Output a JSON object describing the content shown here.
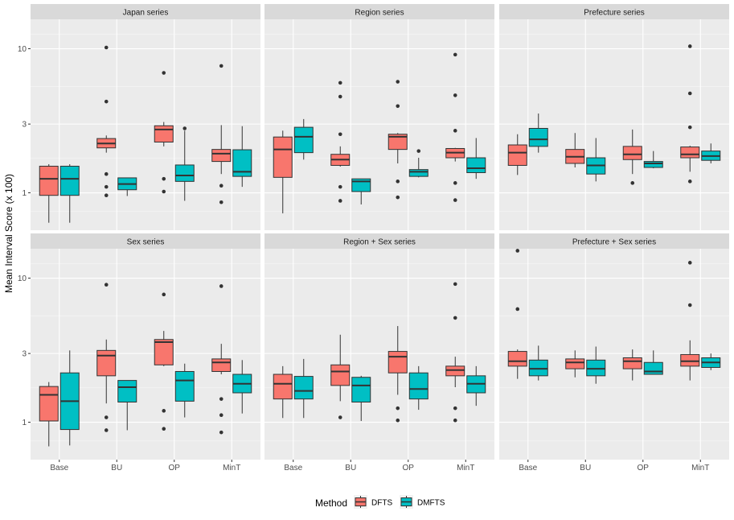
{
  "chart_data": {
    "type": "boxplot",
    "ylabel": "Mean Interval Score (x 100)",
    "y_scale": "log10",
    "ylim": [
      0.55,
      16
    ],
    "y_ticks": [
      1,
      3,
      10
    ],
    "categories": [
      "Base",
      "BU",
      "OP",
      "MinT"
    ],
    "legend": {
      "title": "Method",
      "position": "bottom",
      "entries": [
        {
          "name": "DFTS",
          "color": "#F8766D"
        },
        {
          "name": "DMFTS",
          "color": "#00BFC4"
        }
      ]
    },
    "panels": [
      {
        "title": "Japan series",
        "boxes": [
          {
            "category": "Base",
            "method": "DFTS",
            "stats": [
              0.62,
              0.96,
              1.25,
              1.53,
              1.58
            ],
            "outliers": []
          },
          {
            "category": "Base",
            "method": "DMFTS",
            "stats": [
              0.62,
              0.96,
              1.25,
              1.53,
              1.58
            ],
            "outliers": []
          },
          {
            "category": "BU",
            "method": "DFTS",
            "stats": [
              1.9,
              2.05,
              2.2,
              2.38,
              2.5
            ],
            "outliers": [
              10.2,
              4.3,
              1.35,
              1.1,
              0.96
            ]
          },
          {
            "category": "BU",
            "method": "DMFTS",
            "stats": [
              0.95,
              1.05,
              1.15,
              1.27,
              1.27
            ],
            "outliers": []
          },
          {
            "category": "OP",
            "method": "DFTS",
            "stats": [
              2.1,
              2.25,
              2.75,
              2.92,
              3.1
            ],
            "outliers": [
              6.8,
              1.25,
              1.02
            ]
          },
          {
            "category": "OP",
            "method": "DMFTS",
            "stats": [
              0.88,
              1.2,
              1.32,
              1.56,
              2.7
            ],
            "outliers": [
              2.8
            ]
          },
          {
            "category": "MinT",
            "method": "DFTS",
            "stats": [
              1.35,
              1.65,
              1.87,
              2.0,
              2.95
            ],
            "outliers": [
              7.6,
              1.12,
              0.86
            ]
          },
          {
            "category": "MinT",
            "method": "DMFTS",
            "stats": [
              1.1,
              1.3,
              1.4,
              1.99,
              2.9
            ],
            "outliers": []
          }
        ]
      },
      {
        "title": "Region series",
        "boxes": [
          {
            "category": "Base",
            "method": "DFTS",
            "stats": [
              0.72,
              1.28,
              2.0,
              2.44,
              2.7
            ],
            "outliers": []
          },
          {
            "category": "Base",
            "method": "DMFTS",
            "stats": [
              1.7,
              1.9,
              2.45,
              2.85,
              3.25
            ],
            "outliers": []
          },
          {
            "category": "BU",
            "method": "DFTS",
            "stats": [
              1.52,
              1.55,
              1.7,
              1.85,
              2.1
            ],
            "outliers": [
              5.8,
              4.65,
              2.55,
              1.1,
              0.88
            ]
          },
          {
            "category": "BU",
            "method": "DMFTS",
            "stats": [
              0.83,
              1.02,
              1.2,
              1.25,
              1.25
            ],
            "outliers": []
          },
          {
            "category": "OP",
            "method": "DFTS",
            "stats": [
              1.6,
              2.0,
              2.45,
              2.55,
              2.6
            ],
            "outliers": [
              5.9,
              4.0,
              1.2,
              0.93
            ]
          },
          {
            "category": "OP",
            "method": "DMFTS",
            "stats": [
              1.28,
              1.3,
              1.4,
              1.45,
              1.75
            ],
            "outliers": [
              1.95
            ]
          },
          {
            "category": "MinT",
            "method": "DFTS",
            "stats": [
              1.65,
              1.75,
              1.9,
              2.03,
              2.05
            ],
            "outliers": [
              9.1,
              4.75,
              2.7,
              1.17,
              0.89
            ]
          },
          {
            "category": "MinT",
            "method": "DMFTS",
            "stats": [
              1.25,
              1.38,
              1.48,
              1.75,
              2.4
            ],
            "outliers": []
          }
        ]
      },
      {
        "title": "Prefecture series",
        "boxes": [
          {
            "category": "Base",
            "method": "DFTS",
            "stats": [
              1.33,
              1.55,
              1.9,
              2.15,
              2.55
            ],
            "outliers": []
          },
          {
            "category": "Base",
            "method": "DMFTS",
            "stats": [
              1.9,
              2.1,
              2.35,
              2.8,
              3.55
            ],
            "outliers": []
          },
          {
            "category": "BU",
            "method": "DFTS",
            "stats": [
              1.5,
              1.6,
              1.78,
              2.0,
              2.6
            ],
            "outliers": []
          },
          {
            "category": "BU",
            "method": "DMFTS",
            "stats": [
              1.2,
              1.35,
              1.55,
              1.75,
              2.4
            ],
            "outliers": []
          },
          {
            "category": "OP",
            "method": "DFTS",
            "stats": [
              1.35,
              1.7,
              1.85,
              2.1,
              2.75
            ],
            "outliers": [
              1.17
            ]
          },
          {
            "category": "OP",
            "method": "DMFTS",
            "stats": [
              1.48,
              1.5,
              1.6,
              1.65,
              1.95
            ],
            "outliers": []
          },
          {
            "category": "MinT",
            "method": "DFTS",
            "stats": [
              1.4,
              1.75,
              1.85,
              2.08,
              2.12
            ],
            "outliers": [
              10.4,
              4.9,
              2.85,
              1.2
            ]
          },
          {
            "category": "MinT",
            "method": "DMFTS",
            "stats": [
              1.6,
              1.68,
              1.8,
              1.95,
              2.2
            ],
            "outliers": []
          }
        ]
      },
      {
        "title": "Sex series",
        "boxes": [
          {
            "category": "Base",
            "method": "DFTS",
            "stats": [
              0.68,
              1.02,
              1.55,
              1.77,
              1.9
            ],
            "outliers": []
          },
          {
            "category": "Base",
            "method": "DMFTS",
            "stats": [
              0.69,
              0.89,
              1.4,
              2.2,
              3.15
            ],
            "outliers": []
          },
          {
            "category": "BU",
            "method": "DFTS",
            "stats": [
              1.35,
              2.1,
              2.9,
              3.15,
              3.75
            ],
            "outliers": [
              9.0,
              1.08,
              0.88
            ]
          },
          {
            "category": "BU",
            "method": "DMFTS",
            "stats": [
              0.88,
              1.38,
              1.75,
              1.95,
              1.95
            ],
            "outliers": []
          },
          {
            "category": "OP",
            "method": "DFTS",
            "stats": [
              2.45,
              2.5,
              3.6,
              3.75,
              4.3
            ],
            "outliers": [
              7.7,
              1.2,
              0.9
            ]
          },
          {
            "category": "OP",
            "method": "DMFTS",
            "stats": [
              1.08,
              1.4,
              1.95,
              2.25,
              2.55
            ],
            "outliers": []
          },
          {
            "category": "MinT",
            "method": "DFTS",
            "stats": [
              2.15,
              2.25,
              2.6,
              2.75,
              3.5
            ],
            "outliers": [
              8.8,
              1.45,
              1.12,
              0.85
            ]
          },
          {
            "category": "MinT",
            "method": "DMFTS",
            "stats": [
              1.15,
              1.6,
              1.85,
              2.15,
              2.7
            ],
            "outliers": []
          }
        ]
      },
      {
        "title": "Region + Sex series",
        "boxes": [
          {
            "category": "Base",
            "method": "DFTS",
            "stats": [
              1.07,
              1.45,
              1.85,
              2.15,
              2.45
            ],
            "outliers": []
          },
          {
            "category": "Base",
            "method": "DMFTS",
            "stats": [
              1.07,
              1.45,
              1.65,
              2.08,
              2.75
            ],
            "outliers": []
          },
          {
            "category": "BU",
            "method": "DFTS",
            "stats": [
              1.4,
              1.8,
              2.25,
              2.5,
              4.05
            ],
            "outliers": [
              1.08
            ]
          },
          {
            "category": "BU",
            "method": "DMFTS",
            "stats": [
              1.02,
              1.38,
              1.8,
              2.05,
              2.1
            ],
            "outliers": []
          },
          {
            "category": "OP",
            "method": "DFTS",
            "stats": [
              1.55,
              2.2,
              2.85,
              3.1,
              4.65
            ],
            "outliers": [
              1.25,
              1.03
            ]
          },
          {
            "category": "OP",
            "method": "DMFTS",
            "stats": [
              1.22,
              1.45,
              1.7,
              2.2,
              2.45
            ],
            "outliers": []
          },
          {
            "category": "MinT",
            "method": "DFTS",
            "stats": [
              1.75,
              2.1,
              2.3,
              2.45,
              2.85
            ],
            "outliers": [
              9.1,
              5.3,
              1.25,
              1.03
            ]
          },
          {
            "category": "MinT",
            "method": "DMFTS",
            "stats": [
              1.3,
              1.6,
              1.85,
              2.1,
              2.45
            ],
            "outliers": []
          }
        ]
      },
      {
        "title": "Prefecture + Sex series",
        "boxes": [
          {
            "category": "Base",
            "method": "DFTS",
            "stats": [
              2.0,
              2.45,
              2.65,
              3.1,
              3.2
            ],
            "outliers": [
              15.5,
              6.1
            ]
          },
          {
            "category": "Base",
            "method": "DMFTS",
            "stats": [
              1.95,
              2.1,
              2.35,
              2.7,
              3.4
            ],
            "outliers": []
          },
          {
            "category": "BU",
            "method": "DFTS",
            "stats": [
              2.05,
              2.35,
              2.6,
              2.75,
              3.15
            ],
            "outliers": []
          },
          {
            "category": "BU",
            "method": "DMFTS",
            "stats": [
              1.85,
              2.1,
              2.35,
              2.7,
              3.35
            ],
            "outliers": []
          },
          {
            "category": "OP",
            "method": "DFTS",
            "stats": [
              1.95,
              2.35,
              2.65,
              2.8,
              3.2
            ],
            "outliers": []
          },
          {
            "category": "OP",
            "method": "DMFTS",
            "stats": [
              2.15,
              2.15,
              2.25,
              2.6,
              3.15
            ],
            "outliers": []
          },
          {
            "category": "MinT",
            "method": "DFTS",
            "stats": [
              1.95,
              2.45,
              2.65,
              2.95,
              3.7
            ],
            "outliers": [
              12.8,
              6.5
            ]
          },
          {
            "category": "MinT",
            "method": "DMFTS",
            "stats": [
              2.3,
              2.4,
              2.6,
              2.8,
              3.0
            ],
            "outliers": []
          }
        ]
      }
    ]
  }
}
